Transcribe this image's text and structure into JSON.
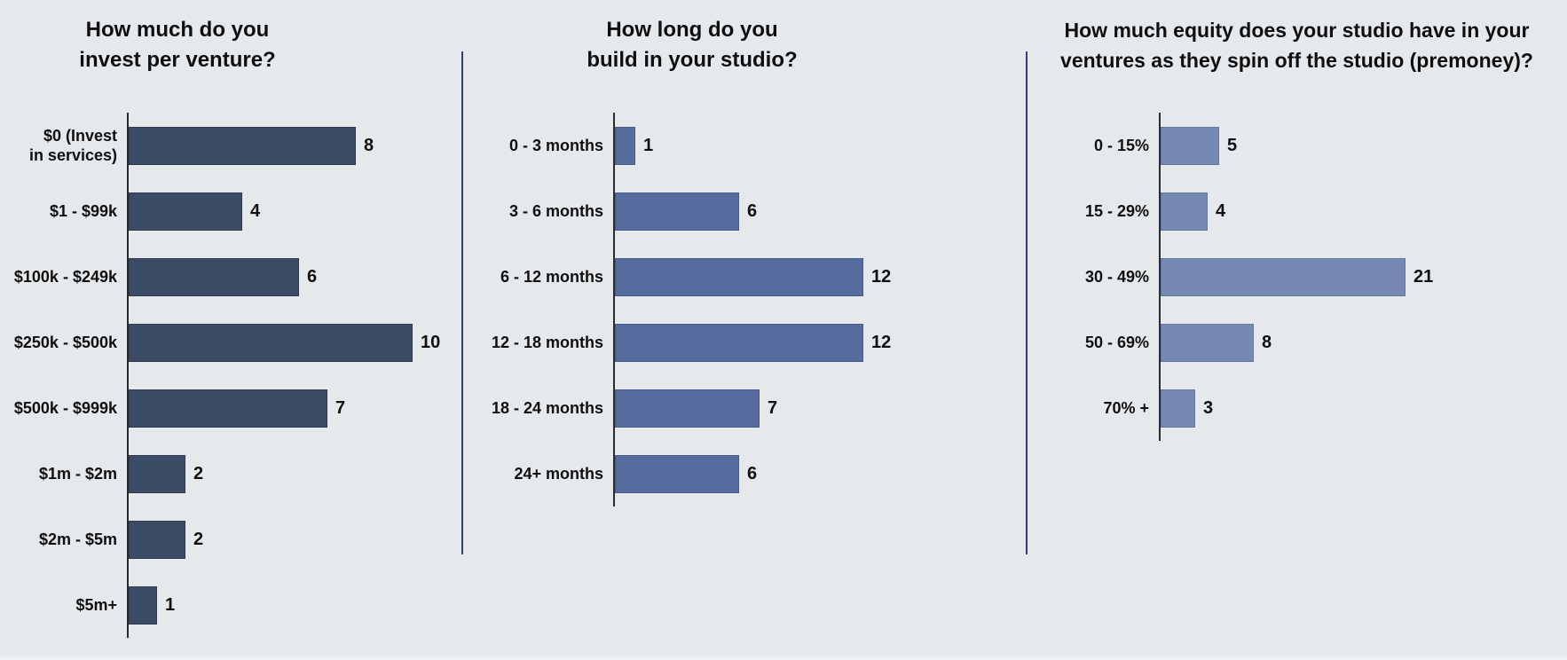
{
  "colors": {
    "background": "#e6e9ec",
    "divider": "#2f4277",
    "axis": "#2b2b2b",
    "text": "#0f0f0f"
  },
  "chart_data": [
    {
      "type": "bar",
      "orientation": "horizontal",
      "title": "How much do you invest per venture?",
      "title_lines": [
        "How much do you",
        "invest per venture?"
      ],
      "categories": [
        "$0 (Invest\nin services)",
        "$1 - $99k",
        "$100k - $249k",
        "$250k - $500k",
        "$500k - $999k",
        "$1m - $2m",
        "$2m - $5m",
        "$5m+"
      ],
      "values": [
        8,
        4,
        6,
        10,
        7,
        2,
        2,
        1
      ],
      "bar_color": "#3d4c66",
      "bar_border_color": "#2e3a50",
      "xlim": [
        0,
        10
      ],
      "grid": false,
      "legend": "none",
      "value_labels": "end-of-bar"
    },
    {
      "type": "bar",
      "orientation": "horizontal",
      "title": "How long do you build in your studio?",
      "title_lines": [
        "How long do you",
        "build in your studio?"
      ],
      "categories": [
        "0 - 3 months",
        "3 - 6 months",
        "6 - 12 months",
        "12 - 18 months",
        "18 - 24 months",
        "24+ months"
      ],
      "values": [
        1,
        6,
        12,
        12,
        7,
        6
      ],
      "bar_color": "#566c9e",
      "bar_border_color": "#475b88",
      "xlim": [
        0,
        12
      ],
      "grid": false,
      "legend": "none",
      "value_labels": "end-of-bar"
    },
    {
      "type": "bar",
      "orientation": "horizontal",
      "title": "How much equity does your studio have in your ventures as they spin off the studio (premoney)?",
      "title_lines": [
        "How much equity does your studio have in your",
        "ventures as they spin off the studio (premoney)?"
      ],
      "categories": [
        "0 - 15%",
        "15 - 29%",
        "30 - 49%",
        "50 - 69%",
        "70% +"
      ],
      "values": [
        5,
        4,
        21,
        8,
        3
      ],
      "bar_color": "#7689b3",
      "bar_border_color": "#64779f",
      "xlim": [
        0,
        21
      ],
      "grid": false,
      "legend": "none",
      "value_labels": "end-of-bar"
    }
  ]
}
